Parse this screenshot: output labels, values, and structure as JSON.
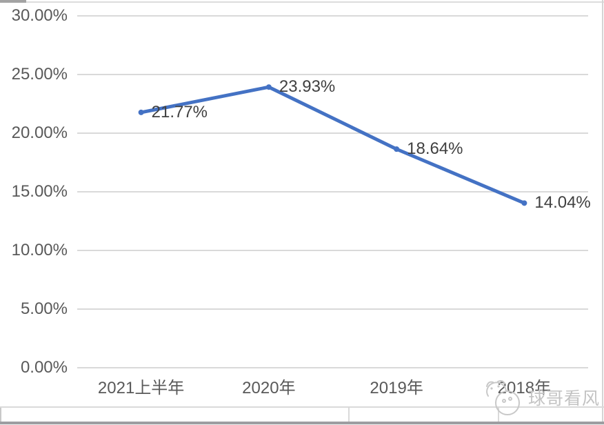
{
  "chart_data": {
    "type": "line",
    "title": "",
    "categories": [
      "2021上半年",
      "2020年",
      "2019年",
      "2018年"
    ],
    "values": [
      21.77,
      23.93,
      18.64,
      14.04
    ],
    "data_labels": [
      "21.77%",
      "23.93%",
      "18.64%",
      "14.04%"
    ],
    "y_tick_labels": [
      "0.00%",
      "5.00%",
      "10.00%",
      "15.00%",
      "20.00%",
      "25.00%",
      "30.00%"
    ],
    "y_tick_values": [
      0,
      5,
      10,
      15,
      20,
      25,
      30
    ],
    "ylim": [
      0,
      30
    ],
    "xlabel": "",
    "ylabel": "",
    "grid": "horizontal",
    "legend": "none",
    "line_color": "#4472C4"
  },
  "colors": {
    "line": "#4472C4",
    "gridline": "#d9d9d9",
    "axis_text": "#595959",
    "data_label_text": "#404040",
    "watermark": "#c3c3c3"
  },
  "watermark": {
    "icon": "pig-face-icon",
    "text": "球哥看风"
  }
}
